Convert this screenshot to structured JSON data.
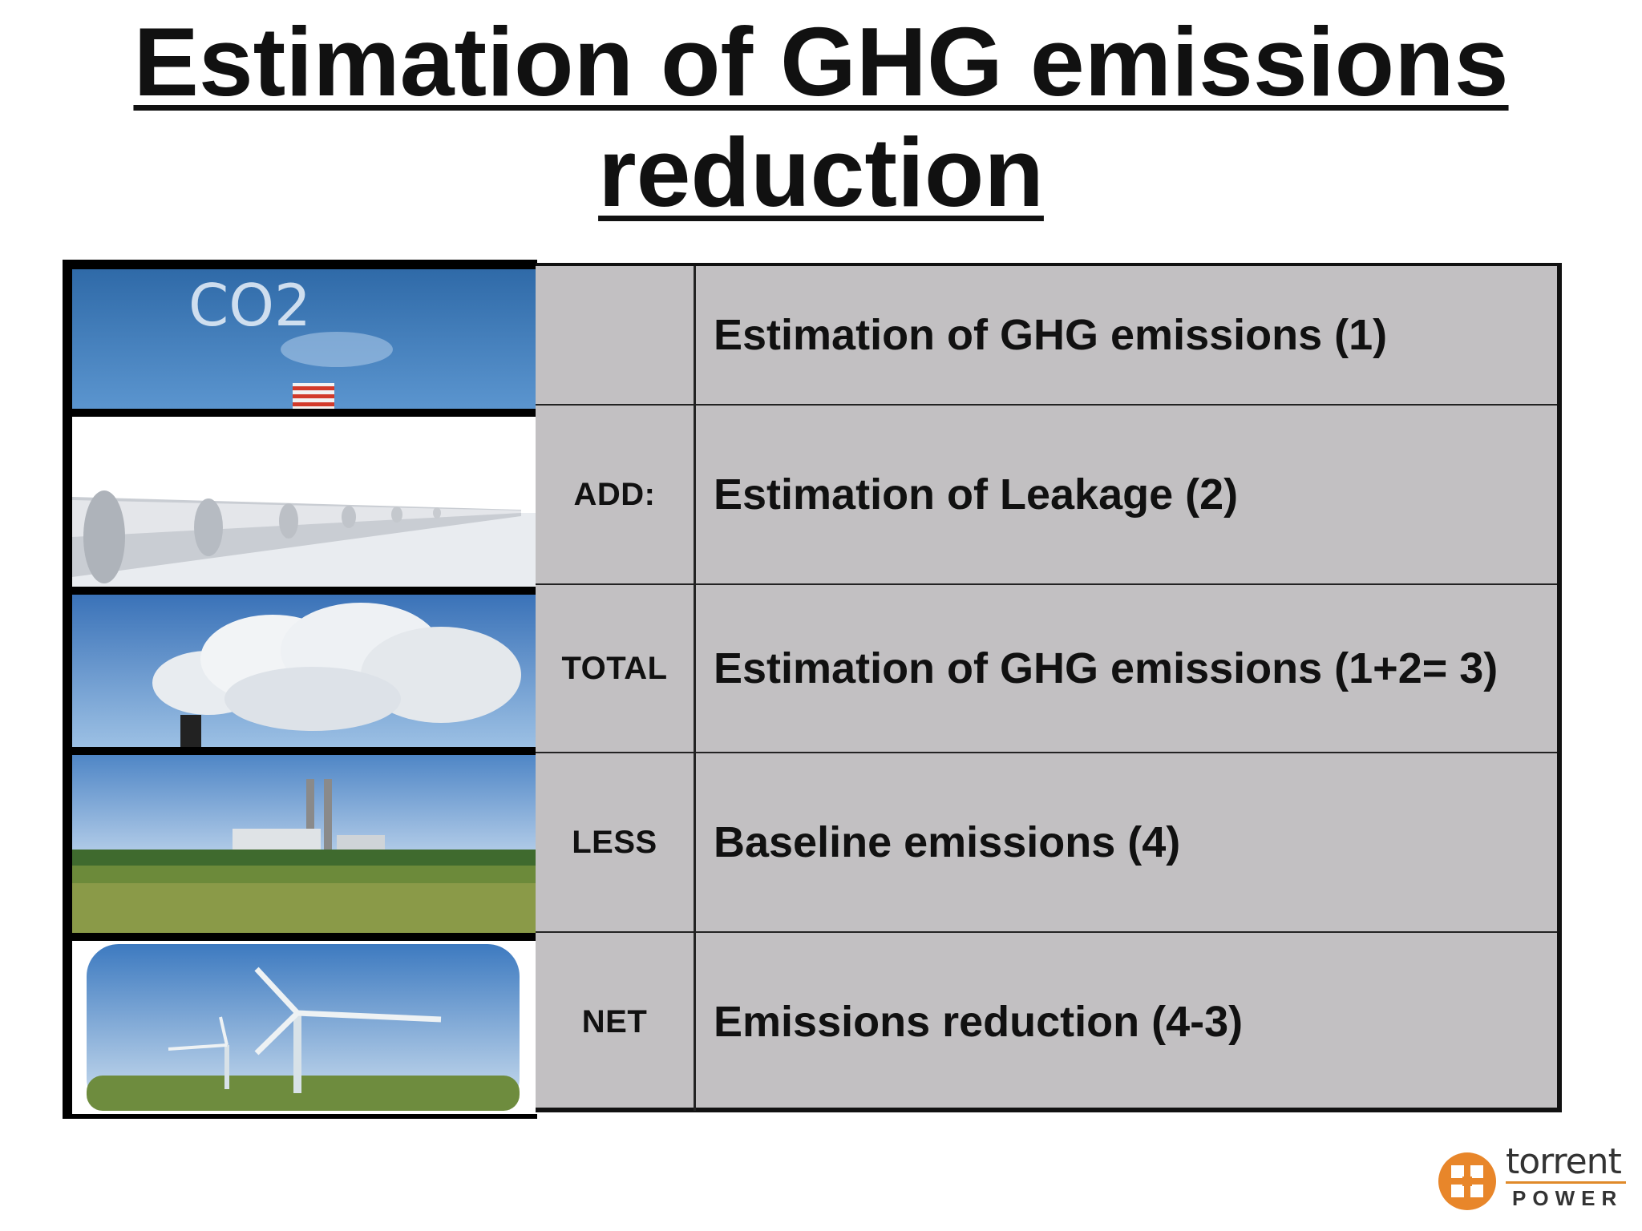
{
  "slide": {
    "title": "Estimation of GHG emissions reduction"
  },
  "images": [
    {
      "name": "co2-smoke-stack-photo",
      "text": "CO2"
    },
    {
      "name": "pipeline-photo"
    },
    {
      "name": "smoke-cloud-photo"
    },
    {
      "name": "power-plant-field-photo"
    },
    {
      "name": "wind-turbines-photo"
    }
  ],
  "table": {
    "rows": [
      {
        "operator": "",
        "description": "Estimation of GHG emissions (1)"
      },
      {
        "operator": "ADD:",
        "description": "Estimation of Leakage (2)"
      },
      {
        "operator": "TOTAL",
        "description": "Estimation of GHG emissions (1+2= 3)"
      },
      {
        "operator": "LESS",
        "description": "Baseline emissions (4)"
      },
      {
        "operator": "NET",
        "description": "Emissions reduction (4-3)"
      }
    ]
  },
  "logo": {
    "word": "torrent",
    "sub": "POWER",
    "accent_color": "#e8862a"
  },
  "colors": {
    "table_bg": "#c2c0c2",
    "sky": "#3f7fc4"
  }
}
